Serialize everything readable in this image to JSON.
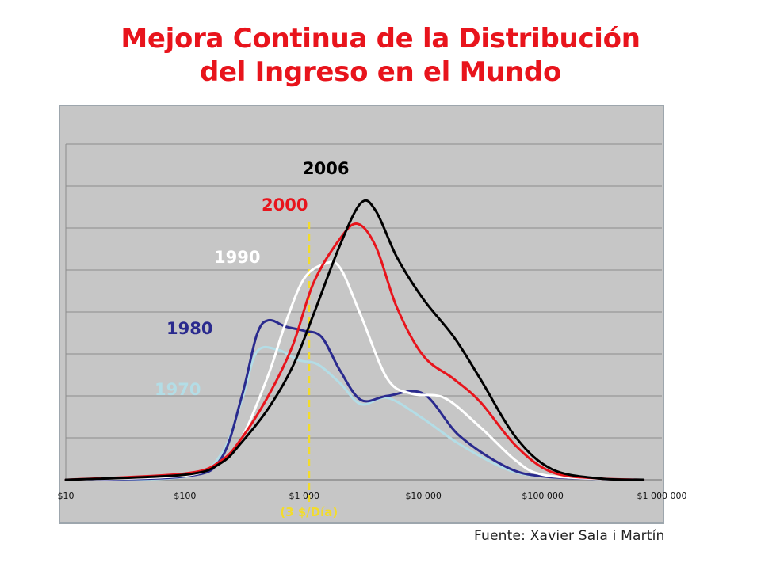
{
  "title": {
    "line1": "Mejora Continua de la Distribución",
    "line2": "del Ingreso en el Mundo"
  },
  "source": "Fuente: Xavier Sala i Martín",
  "colors": {
    "title": "#e8141c",
    "plot_background": "#c6c6c6",
    "gridline": "#8c8c8c",
    "threshold": "#f3dc2a",
    "1970": "#b3dde6",
    "1980": "#2a2a8e",
    "1990": "#ffffff",
    "2000": "#e8141c",
    "2006": "#000000"
  },
  "chart_data": {
    "type": "line",
    "x_scale": "log",
    "xlim": [
      10,
      1000000
    ],
    "x_ticks": [
      10,
      100,
      1000,
      10000,
      100000,
      1000000
    ],
    "x_tick_labels": [
      "$10",
      "$100",
      "$1 000",
      "$10 000",
      "$100 000",
      "$1 000 000"
    ],
    "y_ticks_unlabeled": 8,
    "grid": true,
    "annotations": [
      {
        "text": "(3 $/Día)",
        "x": 1095,
        "style": "dashed vertical line"
      }
    ],
    "series": [
      {
        "name": "1970",
        "x": [
          10,
          100,
          200,
          300,
          400,
          600,
          900,
          1300,
          2000,
          3000,
          5000,
          10000,
          20000,
          50000,
          100000,
          300000,
          700000
        ],
        "y": [
          0.0,
          0.07,
          0.6,
          1.9,
          3.05,
          3.1,
          2.85,
          2.75,
          2.3,
          1.8,
          1.95,
          1.45,
          0.85,
          0.25,
          0.08,
          0.02,
          0.0
        ]
      },
      {
        "name": "1980",
        "x": [
          10,
          100,
          200,
          300,
          400,
          500,
          700,
          1000,
          1400,
          2000,
          3000,
          5000,
          10000,
          20000,
          50000,
          100000,
          300000,
          700000
        ],
        "y": [
          0.0,
          0.08,
          0.5,
          2.0,
          3.45,
          3.8,
          3.65,
          3.55,
          3.4,
          2.6,
          1.9,
          2.0,
          2.05,
          1.05,
          0.3,
          0.08,
          0.02,
          0.0
        ]
      },
      {
        "name": "1990",
        "x": [
          10,
          100,
          200,
          300,
          500,
          700,
          1000,
          1500,
          2000,
          3000,
          5000,
          8000,
          15000,
          30000,
          60000,
          100000,
          300000,
          700000
        ],
        "y": [
          0.0,
          0.1,
          0.45,
          1.0,
          2.5,
          3.75,
          4.8,
          5.15,
          5.05,
          3.9,
          2.4,
          2.05,
          1.95,
          1.25,
          0.45,
          0.12,
          0.02,
          0.0
        ]
      },
      {
        "name": "2000",
        "x": [
          10,
          100,
          200,
          300,
          500,
          800,
          1200,
          2000,
          2800,
          4000,
          6000,
          10000,
          18000,
          30000,
          60000,
          120000,
          300000,
          700000
        ],
        "y": [
          0.0,
          0.15,
          0.45,
          1.0,
          2.0,
          3.2,
          4.7,
          5.75,
          6.1,
          5.55,
          4.1,
          2.95,
          2.4,
          1.85,
          0.8,
          0.18,
          0.03,
          0.0
        ]
      },
      {
        "name": "2006",
        "x": [
          10,
          100,
          200,
          300,
          500,
          800,
          1200,
          2000,
          3000,
          4000,
          6000,
          10000,
          18000,
          30000,
          60000,
          120000,
          300000,
          700000
        ],
        "y": [
          0.0,
          0.12,
          0.4,
          0.9,
          1.7,
          2.7,
          3.95,
          5.6,
          6.6,
          6.4,
          5.3,
          4.3,
          3.4,
          2.4,
          1.0,
          0.25,
          0.03,
          0.0
        ]
      }
    ]
  }
}
